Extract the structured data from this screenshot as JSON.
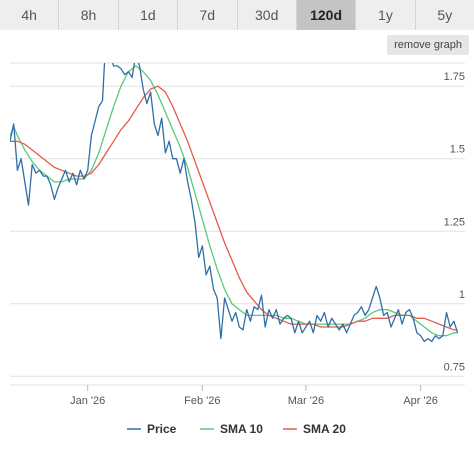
{
  "range_tabs": [
    {
      "label": "4h",
      "active": false
    },
    {
      "label": "8h",
      "active": false
    },
    {
      "label": "1d",
      "active": false
    },
    {
      "label": "7d",
      "active": false
    },
    {
      "label": "30d",
      "active": false
    },
    {
      "label": "120d",
      "active": true
    },
    {
      "label": "1y",
      "active": false
    },
    {
      "label": "5y",
      "active": false
    }
  ],
  "remove_graph_label": "remove graph",
  "colors": {
    "price": "#2f6fa8",
    "sma10": "#5cc87c",
    "sma20": "#e55b4a",
    "grid": "#e2e2e2"
  },
  "chart_data": {
    "type": "line",
    "x_range": [
      "2025-12-11",
      "2026-04-13"
    ],
    "ylim": [
      0.72,
      1.83
    ],
    "yticks": [
      0.75,
      1,
      1.25,
      1.5,
      1.75
    ],
    "ytick_labels": [
      "0.75",
      "1",
      "1.25",
      "1.5",
      "1.75"
    ],
    "xticks": [
      "2026-01-01",
      "2026-02-01",
      "2026-03-01",
      "2026-04-01"
    ],
    "xtick_labels": [
      "Jan '26",
      "Feb '26",
      "Mar '26",
      "Apr '26"
    ],
    "legend_position": "bottom",
    "series": [
      {
        "name": "Price",
        "color": "#2f6fa8",
        "points": [
          [
            "2025-12-11",
            1.56
          ],
          [
            "2025-12-12",
            1.62
          ],
          [
            "2025-12-13",
            1.46
          ],
          [
            "2025-12-14",
            1.5
          ],
          [
            "2025-12-15",
            1.42
          ],
          [
            "2025-12-16",
            1.34
          ],
          [
            "2025-12-17",
            1.48
          ],
          [
            "2025-12-18",
            1.45
          ],
          [
            "2025-12-19",
            1.46
          ],
          [
            "2025-12-20",
            1.44
          ],
          [
            "2025-12-21",
            1.44
          ],
          [
            "2025-12-22",
            1.41
          ],
          [
            "2025-12-23",
            1.36
          ],
          [
            "2025-12-24",
            1.4
          ],
          [
            "2025-12-25",
            1.43
          ],
          [
            "2025-12-26",
            1.46
          ],
          [
            "2025-12-27",
            1.42
          ],
          [
            "2025-12-28",
            1.45
          ],
          [
            "2025-12-29",
            1.41
          ],
          [
            "2025-12-30",
            1.46
          ],
          [
            "2025-12-31",
            1.43
          ],
          [
            "2026-01-01",
            1.46
          ],
          [
            "2026-01-02",
            1.58
          ],
          [
            "2026-01-03",
            1.63
          ],
          [
            "2026-01-04",
            1.68
          ],
          [
            "2026-01-05",
            1.7
          ],
          [
            "2026-01-06",
            1.94
          ],
          [
            "2026-01-07",
            1.86
          ],
          [
            "2026-01-08",
            1.82
          ],
          [
            "2026-01-09",
            1.82
          ],
          [
            "2026-01-10",
            1.81
          ],
          [
            "2026-01-11",
            1.79
          ],
          [
            "2026-01-12",
            1.8
          ],
          [
            "2026-01-13",
            1.78
          ],
          [
            "2026-01-14",
            1.86
          ],
          [
            "2026-01-15",
            1.82
          ],
          [
            "2026-01-16",
            1.74
          ],
          [
            "2026-01-17",
            1.69
          ],
          [
            "2026-01-18",
            1.73
          ],
          [
            "2026-01-19",
            1.62
          ],
          [
            "2026-01-20",
            1.58
          ],
          [
            "2026-01-21",
            1.64
          ],
          [
            "2026-01-22",
            1.52
          ],
          [
            "2026-01-23",
            1.56
          ],
          [
            "2026-01-24",
            1.5
          ],
          [
            "2026-01-25",
            1.5
          ],
          [
            "2026-01-26",
            1.45
          ],
          [
            "2026-01-27",
            1.5
          ],
          [
            "2026-01-28",
            1.42
          ],
          [
            "2026-01-29",
            1.36
          ],
          [
            "2026-01-30",
            1.28
          ],
          [
            "2026-01-31",
            1.16
          ],
          [
            "2026-02-01",
            1.2
          ],
          [
            "2026-02-02",
            1.1
          ],
          [
            "2026-02-03",
            1.13
          ],
          [
            "2026-02-04",
            1.05
          ],
          [
            "2026-02-05",
            1.02
          ],
          [
            "2026-02-06",
            0.88
          ],
          [
            "2026-02-07",
            1.02
          ],
          [
            "2026-02-08",
            0.98
          ],
          [
            "2026-02-09",
            0.94
          ],
          [
            "2026-02-10",
            0.97
          ],
          [
            "2026-02-11",
            0.92
          ],
          [
            "2026-02-12",
            0.91
          ],
          [
            "2026-02-13",
            0.98
          ],
          [
            "2026-02-14",
            0.94
          ],
          [
            "2026-02-15",
            0.99
          ],
          [
            "2026-02-16",
            0.98
          ],
          [
            "2026-02-17",
            1.03
          ],
          [
            "2026-02-18",
            0.92
          ],
          [
            "2026-02-19",
            0.98
          ],
          [
            "2026-02-20",
            0.95
          ],
          [
            "2026-02-21",
            0.98
          ],
          [
            "2026-02-22",
            0.93
          ],
          [
            "2026-02-23",
            0.95
          ],
          [
            "2026-02-24",
            0.96
          ],
          [
            "2026-02-25",
            0.95
          ],
          [
            "2026-02-26",
            0.9
          ],
          [
            "2026-02-27",
            0.94
          ],
          [
            "2026-02-28",
            0.9
          ],
          [
            "2026-03-01",
            0.92
          ],
          [
            "2026-03-02",
            0.94
          ],
          [
            "2026-03-03",
            0.9
          ],
          [
            "2026-03-04",
            0.96
          ],
          [
            "2026-03-05",
            0.94
          ],
          [
            "2026-03-06",
            0.97
          ],
          [
            "2026-03-07",
            0.92
          ],
          [
            "2026-03-08",
            0.95
          ],
          [
            "2026-03-09",
            0.93
          ],
          [
            "2026-03-10",
            0.91
          ],
          [
            "2026-03-11",
            0.93
          ],
          [
            "2026-03-12",
            0.9
          ],
          [
            "2026-03-13",
            0.93
          ],
          [
            "2026-03-14",
            0.96
          ],
          [
            "2026-03-15",
            0.97
          ],
          [
            "2026-03-16",
            0.99
          ],
          [
            "2026-03-17",
            0.96
          ],
          [
            "2026-03-18",
            0.98
          ],
          [
            "2026-03-19",
            1.02
          ],
          [
            "2026-03-20",
            1.06
          ],
          [
            "2026-03-21",
            1.02
          ],
          [
            "2026-03-22",
            0.96
          ],
          [
            "2026-03-23",
            0.97
          ],
          [
            "2026-03-24",
            0.92
          ],
          [
            "2026-03-25",
            0.95
          ],
          [
            "2026-03-26",
            0.98
          ],
          [
            "2026-03-27",
            0.93
          ],
          [
            "2026-03-28",
            0.97
          ],
          [
            "2026-03-29",
            0.98
          ],
          [
            "2026-03-30",
            0.95
          ],
          [
            "2026-03-31",
            0.9
          ],
          [
            "2026-04-01",
            0.89
          ],
          [
            "2026-04-02",
            0.87
          ],
          [
            "2026-04-03",
            0.88
          ],
          [
            "2026-04-04",
            0.87
          ],
          [
            "2026-04-05",
            0.89
          ],
          [
            "2026-04-06",
            0.88
          ],
          [
            "2026-04-07",
            0.89
          ],
          [
            "2026-04-08",
            0.97
          ],
          [
            "2026-04-09",
            0.92
          ],
          [
            "2026-04-10",
            0.94
          ],
          [
            "2026-04-11",
            0.9
          ]
        ]
      },
      {
        "name": "SMA 10",
        "color": "#5cc87c",
        "points": [
          [
            "2025-12-11",
            1.58
          ],
          [
            "2025-12-12",
            1.61
          ],
          [
            "2025-12-13",
            1.58
          ],
          [
            "2025-12-15",
            1.53
          ],
          [
            "2025-12-17",
            1.49
          ],
          [
            "2025-12-19",
            1.46
          ],
          [
            "2025-12-21",
            1.44
          ],
          [
            "2025-12-23",
            1.42
          ],
          [
            "2025-12-25",
            1.42
          ],
          [
            "2025-12-27",
            1.43
          ],
          [
            "2025-12-29",
            1.43
          ],
          [
            "2025-12-31",
            1.43
          ],
          [
            "2026-01-02",
            1.46
          ],
          [
            "2026-01-04",
            1.52
          ],
          [
            "2026-01-06",
            1.6
          ],
          [
            "2026-01-08",
            1.68
          ],
          [
            "2026-01-10",
            1.75
          ],
          [
            "2026-01-12",
            1.8
          ],
          [
            "2026-01-14",
            1.82
          ],
          [
            "2026-01-16",
            1.8
          ],
          [
            "2026-01-18",
            1.77
          ],
          [
            "2026-01-20",
            1.72
          ],
          [
            "2026-01-22",
            1.66
          ],
          [
            "2026-01-24",
            1.6
          ],
          [
            "2026-01-26",
            1.54
          ],
          [
            "2026-01-28",
            1.47
          ],
          [
            "2026-01-30",
            1.38
          ],
          [
            "2026-02-01",
            1.29
          ],
          [
            "2026-02-03",
            1.2
          ],
          [
            "2026-02-05",
            1.12
          ],
          [
            "2026-02-07",
            1.05
          ],
          [
            "2026-02-09",
            1.0
          ],
          [
            "2026-02-11",
            0.98
          ],
          [
            "2026-02-13",
            0.96
          ],
          [
            "2026-02-15",
            0.96
          ],
          [
            "2026-02-17",
            0.96
          ],
          [
            "2026-02-19",
            0.96
          ],
          [
            "2026-02-21",
            0.96
          ],
          [
            "2026-02-23",
            0.95
          ],
          [
            "2026-02-25",
            0.95
          ],
          [
            "2026-02-27",
            0.94
          ],
          [
            "2026-03-01",
            0.93
          ],
          [
            "2026-03-03",
            0.93
          ],
          [
            "2026-03-05",
            0.93
          ],
          [
            "2026-03-07",
            0.93
          ],
          [
            "2026-03-09",
            0.93
          ],
          [
            "2026-03-11",
            0.93
          ],
          [
            "2026-03-13",
            0.93
          ],
          [
            "2026-03-15",
            0.94
          ],
          [
            "2026-03-17",
            0.95
          ],
          [
            "2026-03-19",
            0.97
          ],
          [
            "2026-03-21",
            0.98
          ],
          [
            "2026-03-23",
            0.98
          ],
          [
            "2026-03-25",
            0.97
          ],
          [
            "2026-03-27",
            0.96
          ],
          [
            "2026-03-29",
            0.96
          ],
          [
            "2026-03-31",
            0.94
          ],
          [
            "2026-04-02",
            0.92
          ],
          [
            "2026-04-04",
            0.9
          ],
          [
            "2026-04-06",
            0.89
          ],
          [
            "2026-04-08",
            0.89
          ],
          [
            "2026-04-10",
            0.9
          ],
          [
            "2026-04-11",
            0.9
          ]
        ]
      },
      {
        "name": "SMA 20",
        "color": "#e55b4a",
        "points": [
          [
            "2025-12-11",
            1.56
          ],
          [
            "2025-12-13",
            1.56
          ],
          [
            "2025-12-15",
            1.55
          ],
          [
            "2025-12-17",
            1.53
          ],
          [
            "2025-12-19",
            1.51
          ],
          [
            "2025-12-21",
            1.49
          ],
          [
            "2025-12-23",
            1.47
          ],
          [
            "2025-12-25",
            1.46
          ],
          [
            "2025-12-27",
            1.45
          ],
          [
            "2025-12-29",
            1.44
          ],
          [
            "2025-12-31",
            1.44
          ],
          [
            "2026-01-02",
            1.45
          ],
          [
            "2026-01-04",
            1.48
          ],
          [
            "2026-01-06",
            1.52
          ],
          [
            "2026-01-08",
            1.56
          ],
          [
            "2026-01-10",
            1.6
          ],
          [
            "2026-01-12",
            1.63
          ],
          [
            "2026-01-14",
            1.67
          ],
          [
            "2026-01-16",
            1.71
          ],
          [
            "2026-01-18",
            1.74
          ],
          [
            "2026-01-20",
            1.75
          ],
          [
            "2026-01-22",
            1.73
          ],
          [
            "2026-01-24",
            1.68
          ],
          [
            "2026-01-26",
            1.62
          ],
          [
            "2026-01-28",
            1.56
          ],
          [
            "2026-01-30",
            1.49
          ],
          [
            "2026-02-01",
            1.42
          ],
          [
            "2026-02-03",
            1.35
          ],
          [
            "2026-02-05",
            1.28
          ],
          [
            "2026-02-07",
            1.21
          ],
          [
            "2026-02-09",
            1.15
          ],
          [
            "2026-02-11",
            1.09
          ],
          [
            "2026-02-13",
            1.04
          ],
          [
            "2026-02-15",
            1.01
          ],
          [
            "2026-02-17",
            0.98
          ],
          [
            "2026-02-19",
            0.96
          ],
          [
            "2026-02-21",
            0.95
          ],
          [
            "2026-02-23",
            0.94
          ],
          [
            "2026-02-25",
            0.93
          ],
          [
            "2026-02-27",
            0.93
          ],
          [
            "2026-03-01",
            0.93
          ],
          [
            "2026-03-03",
            0.93
          ],
          [
            "2026-03-05",
            0.92
          ],
          [
            "2026-03-07",
            0.92
          ],
          [
            "2026-03-09",
            0.92
          ],
          [
            "2026-03-11",
            0.92
          ],
          [
            "2026-03-13",
            0.93
          ],
          [
            "2026-03-15",
            0.94
          ],
          [
            "2026-03-17",
            0.94
          ],
          [
            "2026-03-19",
            0.95
          ],
          [
            "2026-03-21",
            0.95
          ],
          [
            "2026-03-23",
            0.95
          ],
          [
            "2026-03-25",
            0.96
          ],
          [
            "2026-03-27",
            0.96
          ],
          [
            "2026-03-29",
            0.96
          ],
          [
            "2026-03-31",
            0.95
          ],
          [
            "2026-04-02",
            0.95
          ],
          [
            "2026-04-04",
            0.94
          ],
          [
            "2026-04-06",
            0.93
          ],
          [
            "2026-04-08",
            0.92
          ],
          [
            "2026-04-10",
            0.91
          ],
          [
            "2026-04-11",
            0.91
          ]
        ]
      }
    ]
  }
}
